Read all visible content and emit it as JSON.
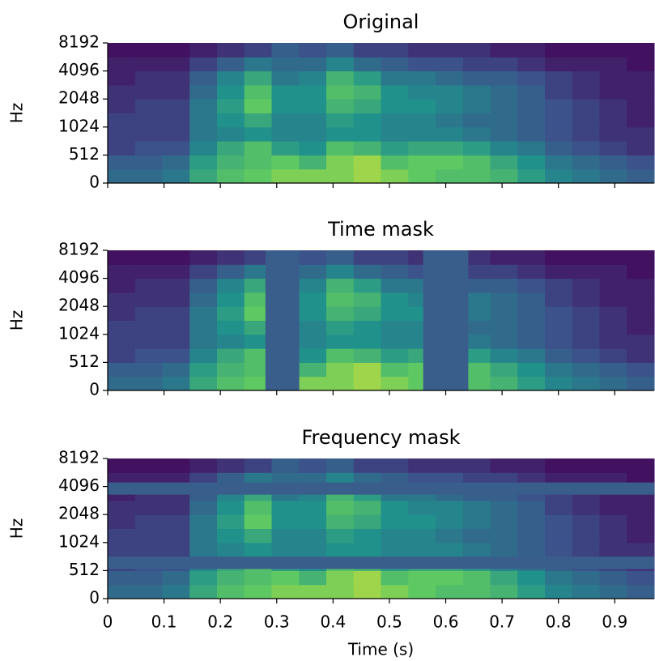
{
  "chart_data": [
    {
      "type": "heatmap",
      "title": "Original",
      "ylabel": "Hz",
      "yscale": "symlog",
      "linthresh": 512,
      "base": 2,
      "ylim": [
        0,
        8192
      ],
      "yticks": [
        0,
        512,
        1024,
        2048,
        4096,
        8192
      ],
      "xlim": [
        0,
        0.97
      ],
      "xticks": [
        0,
        0.1,
        0.2,
        0.3,
        0.4,
        0.5,
        0.6,
        0.7,
        0.8,
        0.9
      ],
      "show_xtick_labels": false,
      "colormap": "viridis",
      "z": [
        [
          0.35,
          0.35,
          0.4,
          0.6,
          0.7,
          0.75,
          0.8,
          0.8,
          0.8,
          0.85,
          0.8,
          0.75,
          0.7,
          0.7,
          0.65,
          0.55,
          0.45,
          0.4,
          0.35,
          0.3
        ],
        [
          0.3,
          0.3,
          0.35,
          0.55,
          0.65,
          0.7,
          0.75,
          0.65,
          0.8,
          0.85,
          0.7,
          0.75,
          0.75,
          0.7,
          0.6,
          0.5,
          0.4,
          0.35,
          0.3,
          0.25
        ],
        [
          0.2,
          0.25,
          0.25,
          0.45,
          0.6,
          0.7,
          0.55,
          0.5,
          0.7,
          0.65,
          0.55,
          0.6,
          0.6,
          0.55,
          0.45,
          0.4,
          0.3,
          0.25,
          0.2,
          0.15
        ],
        [
          0.2,
          0.2,
          0.2,
          0.4,
          0.45,
          0.5,
          0.45,
          0.45,
          0.5,
          0.5,
          0.45,
          0.45,
          0.45,
          0.4,
          0.35,
          0.3,
          0.25,
          0.2,
          0.15,
          0.15
        ],
        [
          0.2,
          0.2,
          0.2,
          0.4,
          0.5,
          0.6,
          0.45,
          0.45,
          0.55,
          0.5,
          0.45,
          0.45,
          0.4,
          0.35,
          0.35,
          0.3,
          0.25,
          0.2,
          0.15,
          0.1
        ],
        [
          0.15,
          0.2,
          0.2,
          0.4,
          0.55,
          0.75,
          0.5,
          0.5,
          0.65,
          0.6,
          0.5,
          0.5,
          0.45,
          0.4,
          0.35,
          0.3,
          0.25,
          0.2,
          0.15,
          0.1
        ],
        [
          0.15,
          0.15,
          0.15,
          0.35,
          0.5,
          0.7,
          0.5,
          0.5,
          0.7,
          0.65,
          0.5,
          0.45,
          0.45,
          0.4,
          0.35,
          0.3,
          0.2,
          0.15,
          0.1,
          0.1
        ],
        [
          0.1,
          0.15,
          0.15,
          0.3,
          0.45,
          0.6,
          0.4,
          0.45,
          0.65,
          0.55,
          0.4,
          0.4,
          0.35,
          0.3,
          0.3,
          0.25,
          0.2,
          0.15,
          0.1,
          0.1
        ],
        [
          0.1,
          0.1,
          0.1,
          0.2,
          0.3,
          0.4,
          0.35,
          0.35,
          0.45,
          0.35,
          0.3,
          0.25,
          0.25,
          0.2,
          0.2,
          0.15,
          0.1,
          0.1,
          0.1,
          0.05
        ],
        [
          0.05,
          0.05,
          0.05,
          0.1,
          0.15,
          0.2,
          0.3,
          0.25,
          0.3,
          0.2,
          0.2,
          0.15,
          0.15,
          0.15,
          0.1,
          0.1,
          0.05,
          0.05,
          0.05,
          0.05
        ]
      ]
    },
    {
      "type": "heatmap",
      "title": "Time mask",
      "ylabel": "Hz",
      "yscale": "symlog",
      "linthresh": 512,
      "base": 2,
      "ylim": [
        0,
        8192
      ],
      "yticks": [
        0,
        512,
        1024,
        2048,
        4096,
        8192
      ],
      "xlim": [
        0,
        0.97
      ],
      "xticks": [
        0,
        0.1,
        0.2,
        0.3,
        0.4,
        0.5,
        0.6,
        0.7,
        0.8,
        0.9
      ],
      "show_xtick_labels": false,
      "colormap": "viridis",
      "mask_color": "#3a5e8c",
      "time_masks": [
        [
          0.28,
          0.34
        ],
        [
          0.56,
          0.64
        ]
      ],
      "z": [
        [
          0.35,
          0.35,
          0.4,
          0.6,
          0.7,
          0.75,
          0.8,
          0.8,
          0.8,
          0.85,
          0.8,
          0.75,
          0.7,
          0.7,
          0.65,
          0.55,
          0.45,
          0.4,
          0.35,
          0.3
        ],
        [
          0.3,
          0.3,
          0.35,
          0.55,
          0.65,
          0.7,
          0.75,
          0.65,
          0.8,
          0.85,
          0.7,
          0.75,
          0.75,
          0.7,
          0.6,
          0.5,
          0.4,
          0.35,
          0.3,
          0.25
        ],
        [
          0.2,
          0.25,
          0.25,
          0.45,
          0.6,
          0.7,
          0.55,
          0.5,
          0.7,
          0.65,
          0.55,
          0.6,
          0.6,
          0.55,
          0.45,
          0.4,
          0.3,
          0.25,
          0.2,
          0.15
        ],
        [
          0.2,
          0.2,
          0.2,
          0.4,
          0.45,
          0.5,
          0.45,
          0.45,
          0.5,
          0.5,
          0.45,
          0.45,
          0.45,
          0.4,
          0.35,
          0.3,
          0.25,
          0.2,
          0.15,
          0.15
        ],
        [
          0.2,
          0.2,
          0.2,
          0.4,
          0.5,
          0.6,
          0.45,
          0.45,
          0.55,
          0.5,
          0.45,
          0.45,
          0.4,
          0.35,
          0.35,
          0.3,
          0.25,
          0.2,
          0.15,
          0.1
        ],
        [
          0.15,
          0.2,
          0.2,
          0.4,
          0.55,
          0.75,
          0.5,
          0.5,
          0.65,
          0.6,
          0.5,
          0.5,
          0.45,
          0.4,
          0.35,
          0.3,
          0.25,
          0.2,
          0.15,
          0.1
        ],
        [
          0.15,
          0.15,
          0.15,
          0.35,
          0.5,
          0.7,
          0.5,
          0.5,
          0.7,
          0.65,
          0.5,
          0.45,
          0.45,
          0.4,
          0.35,
          0.3,
          0.2,
          0.15,
          0.1,
          0.1
        ],
        [
          0.1,
          0.15,
          0.15,
          0.3,
          0.45,
          0.6,
          0.4,
          0.45,
          0.65,
          0.55,
          0.4,
          0.4,
          0.35,
          0.3,
          0.3,
          0.25,
          0.2,
          0.15,
          0.1,
          0.1
        ],
        [
          0.1,
          0.1,
          0.1,
          0.2,
          0.3,
          0.4,
          0.35,
          0.35,
          0.45,
          0.35,
          0.3,
          0.25,
          0.25,
          0.2,
          0.2,
          0.15,
          0.1,
          0.1,
          0.1,
          0.05
        ],
        [
          0.05,
          0.05,
          0.05,
          0.1,
          0.15,
          0.2,
          0.3,
          0.25,
          0.3,
          0.2,
          0.2,
          0.15,
          0.15,
          0.15,
          0.1,
          0.1,
          0.05,
          0.05,
          0.05,
          0.05
        ]
      ]
    },
    {
      "type": "heatmap",
      "title": "Frequency mask",
      "ylabel": "Hz",
      "xlabel": "Time (s)",
      "yscale": "symlog",
      "linthresh": 512,
      "base": 2,
      "ylim": [
        0,
        8192
      ],
      "yticks": [
        0,
        512,
        1024,
        2048,
        4096,
        8192
      ],
      "xlim": [
        0,
        0.97
      ],
      "xticks": [
        0,
        0.1,
        0.2,
        0.3,
        0.4,
        0.5,
        0.6,
        0.7,
        0.8,
        0.9
      ],
      "show_xtick_labels": true,
      "colormap": "viridis",
      "mask_color": "#3a5e8c",
      "freq_masks": [
        [
          3350,
          4526
        ],
        [
          533,
          724
        ]
      ],
      "z": [
        [
          0.35,
          0.35,
          0.4,
          0.6,
          0.7,
          0.75,
          0.8,
          0.8,
          0.8,
          0.85,
          0.8,
          0.75,
          0.7,
          0.7,
          0.65,
          0.55,
          0.45,
          0.4,
          0.35,
          0.3
        ],
        [
          0.3,
          0.3,
          0.35,
          0.55,
          0.65,
          0.7,
          0.75,
          0.65,
          0.8,
          0.85,
          0.7,
          0.75,
          0.75,
          0.7,
          0.6,
          0.5,
          0.4,
          0.35,
          0.3,
          0.25
        ],
        [
          0.2,
          0.25,
          0.25,
          0.45,
          0.6,
          0.7,
          0.55,
          0.5,
          0.7,
          0.65,
          0.55,
          0.6,
          0.6,
          0.55,
          0.45,
          0.4,
          0.3,
          0.25,
          0.2,
          0.15
        ],
        [
          0.2,
          0.2,
          0.2,
          0.4,
          0.45,
          0.5,
          0.45,
          0.45,
          0.5,
          0.5,
          0.45,
          0.45,
          0.45,
          0.4,
          0.35,
          0.3,
          0.25,
          0.2,
          0.15,
          0.15
        ],
        [
          0.2,
          0.2,
          0.2,
          0.4,
          0.5,
          0.6,
          0.45,
          0.45,
          0.55,
          0.5,
          0.45,
          0.45,
          0.4,
          0.35,
          0.35,
          0.3,
          0.25,
          0.2,
          0.15,
          0.1
        ],
        [
          0.15,
          0.2,
          0.2,
          0.4,
          0.55,
          0.75,
          0.5,
          0.5,
          0.65,
          0.6,
          0.5,
          0.5,
          0.45,
          0.4,
          0.35,
          0.3,
          0.25,
          0.2,
          0.15,
          0.1
        ],
        [
          0.15,
          0.15,
          0.15,
          0.35,
          0.5,
          0.7,
          0.5,
          0.5,
          0.7,
          0.65,
          0.5,
          0.45,
          0.45,
          0.4,
          0.35,
          0.3,
          0.2,
          0.15,
          0.1,
          0.1
        ],
        [
          0.1,
          0.15,
          0.15,
          0.3,
          0.45,
          0.6,
          0.4,
          0.45,
          0.65,
          0.55,
          0.4,
          0.4,
          0.35,
          0.3,
          0.3,
          0.25,
          0.2,
          0.15,
          0.1,
          0.1
        ],
        [
          0.1,
          0.1,
          0.1,
          0.2,
          0.3,
          0.4,
          0.35,
          0.35,
          0.45,
          0.35,
          0.3,
          0.25,
          0.25,
          0.2,
          0.2,
          0.15,
          0.1,
          0.1,
          0.1,
          0.05
        ],
        [
          0.05,
          0.05,
          0.05,
          0.1,
          0.15,
          0.2,
          0.3,
          0.25,
          0.3,
          0.2,
          0.2,
          0.15,
          0.15,
          0.15,
          0.1,
          0.1,
          0.05,
          0.05,
          0.05,
          0.05
        ]
      ]
    }
  ]
}
